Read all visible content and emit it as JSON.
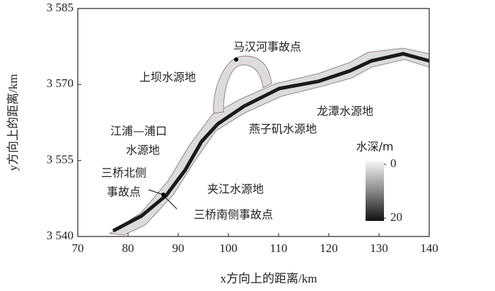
{
  "chart_data": {
    "type": "map",
    "xlabel": "x方向上的距离/km",
    "ylabel": "y方向上的距离/km",
    "xlim": [
      70,
      140
    ],
    "xticks": [
      70,
      80,
      90,
      100,
      110,
      120,
      130,
      140
    ],
    "ylim": [
      3540,
      3585
    ],
    "yticks": [
      {
        "value": 3540,
        "label": "3 540"
      },
      {
        "value": 3555,
        "label": "3 555"
      },
      {
        "value": 3570,
        "label": "3 570"
      },
      {
        "value": 3585,
        "label": "3 585"
      }
    ],
    "annotations": [
      "马汉河事故点",
      "上坝水源地",
      "龙潭水源地",
      "燕子矶水源地",
      "江浦—浦口",
      "水源地",
      "三桥北侧",
      "事故点",
      "夹江水源地",
      "三桥南侧事故点"
    ],
    "colorbar": {
      "title": "水深/m",
      "lim": [
        0,
        20
      ],
      "ticks": [
        0,
        20
      ]
    }
  }
}
